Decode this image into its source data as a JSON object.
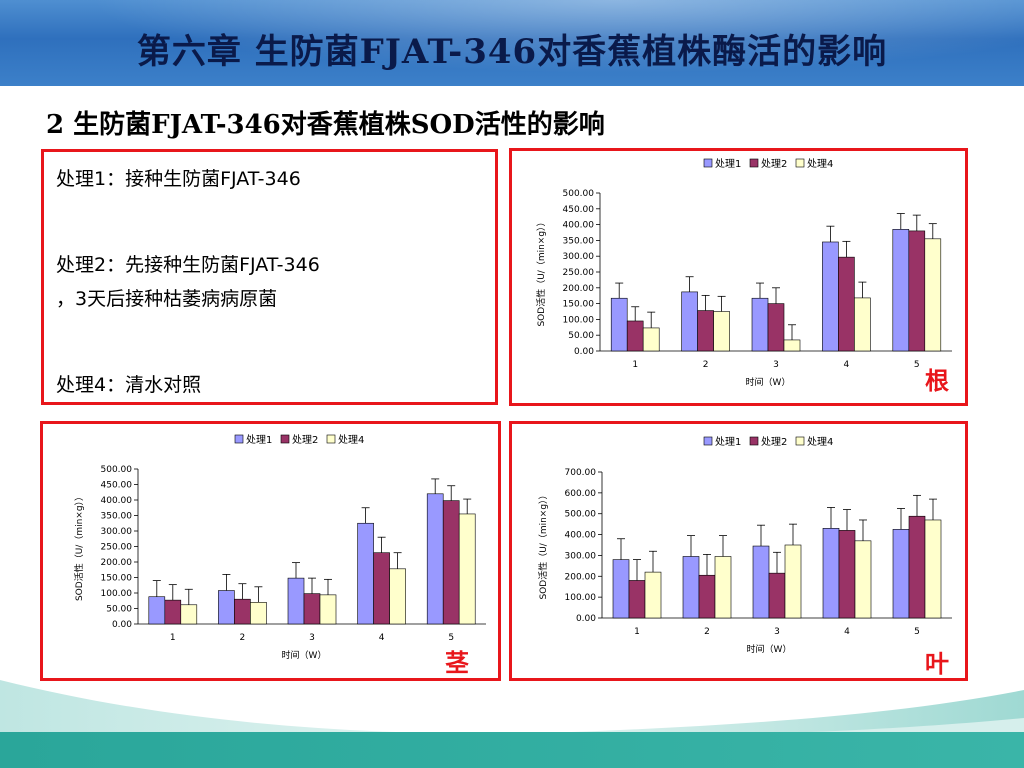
{
  "header": {
    "title": "第六章  生防菌FJAT-346对香蕉植株酶活的影响"
  },
  "subtitle": "2 生防菌FJAT-346对香蕉植株SOD活性的影响",
  "info": {
    "line1": "处理1：接种生防菌FJAT-346",
    "line2a": "处理2：先接种生防菌FJAT-346",
    "line2b": "，3天后接种枯萎病病原菌",
    "line3": "处理4：清水对照"
  },
  "colors": {
    "s1": "#9999ff",
    "s2": "#993366",
    "s3": "#ffffcc",
    "frame": "#e8161b"
  },
  "chart_data": [
    {
      "type": "bar",
      "panel_label": "根",
      "categories": [
        "1",
        "2",
        "3",
        "4",
        "5"
      ],
      "xlabel": "时间（W）",
      "ylabel": "SOD活性（U/（min×g））",
      "ylim": [
        0,
        500
      ],
      "yticks": [
        "0.00",
        "50.00",
        "100.00",
        "150.00",
        "200.00",
        "250.00",
        "300.00",
        "350.00",
        "400.00",
        "450.00",
        "500.00"
      ],
      "legend": "top",
      "series": [
        {
          "name": "处理1",
          "values": [
            167,
            187,
            167,
            345,
            385
          ],
          "errors": [
            48,
            48,
            48,
            50,
            50
          ]
        },
        {
          "name": "处理2",
          "values": [
            95,
            128,
            150,
            297,
            380
          ],
          "errors": [
            45,
            48,
            50,
            50,
            50
          ]
        },
        {
          "name": "处理4",
          "values": [
            73,
            125,
            35,
            168,
            355
          ],
          "errors": [
            50,
            48,
            48,
            50,
            48
          ]
        }
      ]
    },
    {
      "type": "bar",
      "panel_label": "茎",
      "categories": [
        "1",
        "2",
        "3",
        "4",
        "5"
      ],
      "xlabel": "时间（W）",
      "ylabel": "SOD活性（U/（min×g））",
      "ylim": [
        0,
        500
      ],
      "yticks": [
        "0.00",
        "50.00",
        "100.00",
        "150.00",
        "200.00",
        "250.00",
        "300.00",
        "350.00",
        "400.00",
        "450.00",
        "500.00"
      ],
      "legend": "top",
      "series": [
        {
          "name": "处理1",
          "values": [
            88,
            108,
            148,
            325,
            420
          ],
          "errors": [
            52,
            52,
            50,
            50,
            48
          ]
        },
        {
          "name": "处理2",
          "values": [
            77,
            80,
            98,
            230,
            398
          ],
          "errors": [
            50,
            50,
            50,
            50,
            48
          ]
        },
        {
          "name": "处理4",
          "values": [
            62,
            70,
            94,
            178,
            355
          ],
          "errors": [
            50,
            50,
            50,
            52,
            48
          ]
        }
      ]
    },
    {
      "type": "bar",
      "panel_label": "叶",
      "categories": [
        "1",
        "2",
        "3",
        "4",
        "5"
      ],
      "xlabel": "时间（W）",
      "ylabel": "SOD活性（U/（min×g））",
      "ylim": [
        0,
        700
      ],
      "yticks": [
        "0.00",
        "100.00",
        "200.00",
        "300.00",
        "400.00",
        "500.00",
        "600.00",
        "700.00"
      ],
      "legend": "top",
      "series": [
        {
          "name": "处理1",
          "values": [
            280,
            295,
            345,
            430,
            425
          ],
          "errors": [
            100,
            100,
            100,
            100,
            100
          ]
        },
        {
          "name": "处理2",
          "values": [
            180,
            205,
            215,
            420,
            488
          ],
          "errors": [
            100,
            100,
            100,
            100,
            100
          ]
        },
        {
          "name": "处理4",
          "values": [
            220,
            295,
            350,
            370,
            470
          ],
          "errors": [
            100,
            100,
            100,
            100,
            100
          ]
        }
      ]
    }
  ]
}
